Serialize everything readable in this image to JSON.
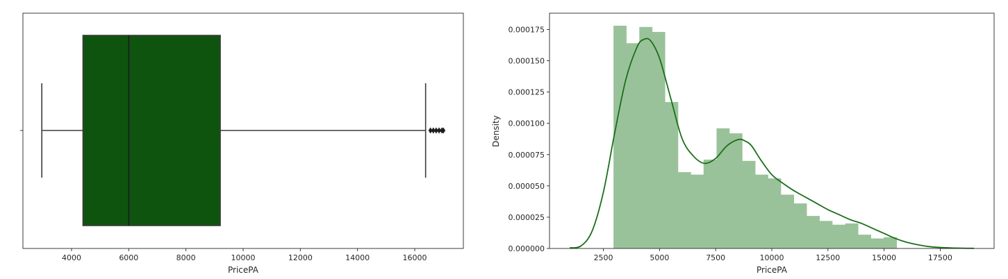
{
  "chart_data": [
    {
      "type": "box",
      "xlabel": "PricePA",
      "ylabel": "",
      "xlim": [
        2300,
        17700
      ],
      "xticks": [
        4000,
        6000,
        8000,
        10000,
        12000,
        14000,
        16000
      ],
      "box": {
        "whisker_low": 2960,
        "q1": 4400,
        "median": 6000,
        "q3": 9200,
        "whisker_high": 16380
      },
      "outliers": [
        16550,
        16650,
        16750,
        16850,
        16950,
        17000
      ],
      "color": "#0e540e",
      "line_color": "#3b3b3b",
      "grid": false
    },
    {
      "type": "histogram",
      "xlabel": "PricePA",
      "ylabel": "Density",
      "xlim": [
        100,
        19900
      ],
      "ylim": [
        0,
        0.000188
      ],
      "xticks": [
        2500,
        5000,
        7500,
        10000,
        12500,
        15000,
        17500
      ],
      "yticks": [
        0.0,
        2.5e-05,
        5e-05,
        7.5e-05,
        0.0001,
        0.000125,
        0.00015,
        0.000175
      ],
      "ytick_labels": [
        "0.000000",
        "0.000025",
        "0.000050",
        "0.000075",
        "0.000100",
        "0.000125",
        "0.000150",
        "0.000175"
      ],
      "bin_edges": [
        2950,
        3520,
        4100,
        4670,
        5240,
        5820,
        6390,
        6960,
        7540,
        8110,
        8680,
        9260,
        9830,
        10400,
        10980,
        11550,
        12120,
        12690,
        13270,
        13840,
        14410,
        14990,
        15560,
        16130,
        16710,
        17290
      ],
      "densities": [
        0.000178,
        0.000164,
        0.000177,
        0.000173,
        0.000117,
        6.1e-05,
        5.9e-05,
        7.1e-05,
        9.6e-05,
        9.2e-05,
        7e-05,
        5.9e-05,
        5.6e-05,
        4.3e-05,
        3.6e-05,
        2.6e-05,
        2.2e-05,
        1.9e-05,
        2e-05,
        1.1e-05,
        8e-06,
        9e-06,
        0.0,
        0.0,
        0.0
      ],
      "kde": {
        "x": [
          1000,
          1500,
          2000,
          2500,
          3000,
          3500,
          4000,
          4300,
          4600,
          5000,
          5500,
          6000,
          6500,
          7000,
          7500,
          8000,
          8500,
          8800,
          9100,
          9500,
          10000,
          10500,
          11000,
          11500,
          12000,
          12500,
          13000,
          13500,
          14000,
          14500,
          15000,
          15500,
          16000,
          16500,
          17000,
          17500,
          18000,
          18500,
          19000
        ],
        "y": [
          5e-07,
          2e-06,
          1.4e-05,
          4.5e-05,
          9.2e-05,
          0.000135,
          0.000161,
          0.000167,
          0.000166,
          0.000152,
          0.00012,
          8.8e-05,
          7.4e-05,
          6.8e-05,
          7.2e-05,
          8.2e-05,
          8.7e-05,
          8.6e-05,
          8.2e-05,
          7.1e-05,
          5.9e-05,
          5.2e-05,
          4.6e-05,
          4.1e-05,
          3.6e-05,
          3.1e-05,
          2.7e-05,
          2.3e-05,
          2e-05,
          1.6e-05,
          1.2e-05,
          8e-06,
          5e-06,
          3e-06,
          1.5e-06,
          8e-07,
          4e-07,
          2e-07,
          1e-07
        ]
      },
      "bar_color": "#9ac29a",
      "line_color": "#1a6e1a",
      "grid": false
    }
  ]
}
